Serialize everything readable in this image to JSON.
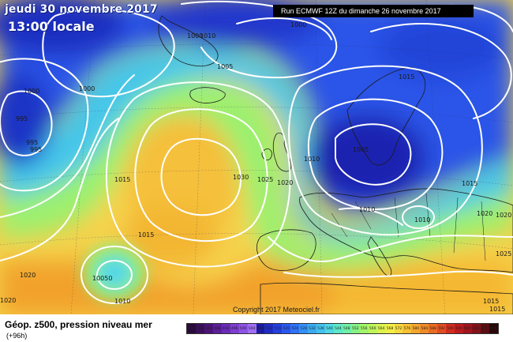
{
  "header": {
    "date_line": "jeudi 30 novembre 2017",
    "time_line": "13:00 locale",
    "run_line": "Run ECMWF 12Z du dimanche 26 novembre 2017"
  },
  "copyright": "Copyright 2017 Meteociel.fr",
  "legend": {
    "title": "Géop. z500, pression niveau mer",
    "subtitle": "(+96h)",
    "scale": [
      {
        "label": "476",
        "color": "#2a0a3d"
      },
      {
        "label": "480",
        "color": "#3b0f5c"
      },
      {
        "label": "484",
        "color": "#4c137a"
      },
      {
        "label": "488",
        "color": "#5a1f9a"
      },
      {
        "label": "492",
        "color": "#6b2bb5"
      },
      {
        "label": "496",
        "color": "#7d3ed0"
      },
      {
        "label": "500",
        "color": "#8e52e6"
      },
      {
        "label": "504",
        "color": "#a06ef2"
      },
      {
        "label": "508",
        "color": "#1a1aa8"
      },
      {
        "label": "512",
        "color": "#1f2cc4"
      },
      {
        "label": "516",
        "color": "#2340dc"
      },
      {
        "label": "520",
        "color": "#2a58ef"
      },
      {
        "label": "524",
        "color": "#2f72f6"
      },
      {
        "label": "528",
        "color": "#3590f6"
      },
      {
        "label": "532",
        "color": "#3aaaf2"
      },
      {
        "label": "536",
        "color": "#42c2ec"
      },
      {
        "label": "540",
        "color": "#4ed8e2"
      },
      {
        "label": "544",
        "color": "#5ee8c8"
      },
      {
        "label": "548",
        "color": "#70efa6"
      },
      {
        "label": "552",
        "color": "#86f286"
      },
      {
        "label": "556",
        "color": "#a2f46a"
      },
      {
        "label": "560",
        "color": "#c0f558"
      },
      {
        "label": "564",
        "color": "#dcf24e"
      },
      {
        "label": "568",
        "color": "#f2ee48"
      },
      {
        "label": "572",
        "color": "#f8d840"
      },
      {
        "label": "576",
        "color": "#f7c035"
      },
      {
        "label": "580",
        "color": "#f4a62e"
      },
      {
        "label": "584",
        "color": "#f08a28"
      },
      {
        "label": "588",
        "color": "#ea6c24"
      },
      {
        "label": "592",
        "color": "#e14c22"
      },
      {
        "label": "596",
        "color": "#d02c20"
      },
      {
        "label": "600",
        "color": "#bb1a1e"
      },
      {
        "label": "604",
        "color": "#a0141c"
      },
      {
        "label": "608",
        "color": "#84121a"
      },
      {
        "label": "612",
        "color": "#5a0e14"
      },
      {
        "label": "616",
        "color": "#2a0808"
      }
    ]
  },
  "isobar_labels": [
    {
      "text": "1000",
      "id": "l1"
    },
    {
      "text": "1010",
      "id": "l2"
    },
    {
      "text": "1000",
      "id": "l3"
    },
    {
      "text": "1000",
      "id": "l4"
    },
    {
      "text": "1000",
      "id": "l5"
    },
    {
      "text": "995",
      "id": "l6"
    },
    {
      "text": "995",
      "id": "l7"
    },
    {
      "text": "995",
      "id": "l8"
    },
    {
      "text": "1005",
      "id": "l9"
    },
    {
      "text": "1015",
      "id": "l10"
    },
    {
      "text": "1030",
      "id": "l11"
    },
    {
      "text": "1025",
      "id": "l12"
    },
    {
      "text": "1020",
      "id": "l13"
    },
    {
      "text": "1010",
      "id": "l14"
    },
    {
      "text": "1005",
      "id": "l15"
    },
    {
      "text": "1015",
      "id": "l16"
    },
    {
      "text": "1015",
      "id": "l17"
    },
    {
      "text": "1010",
      "id": "l18"
    },
    {
      "text": "1010",
      "id": "l19"
    },
    {
      "text": "1015",
      "id": "l20"
    },
    {
      "text": "1020",
      "id": "l21"
    },
    {
      "text": "1020",
      "id": "l22"
    },
    {
      "text": "1025",
      "id": "l23"
    },
    {
      "text": "1020",
      "id": "l24"
    },
    {
      "text": "10050",
      "id": "l25"
    },
    {
      "text": "1010",
      "id": "l26"
    },
    {
      "text": "1020",
      "id": "l27"
    },
    {
      "text": "1015",
      "id": "l28"
    },
    {
      "text": "1015",
      "id": "l29"
    }
  ]
}
